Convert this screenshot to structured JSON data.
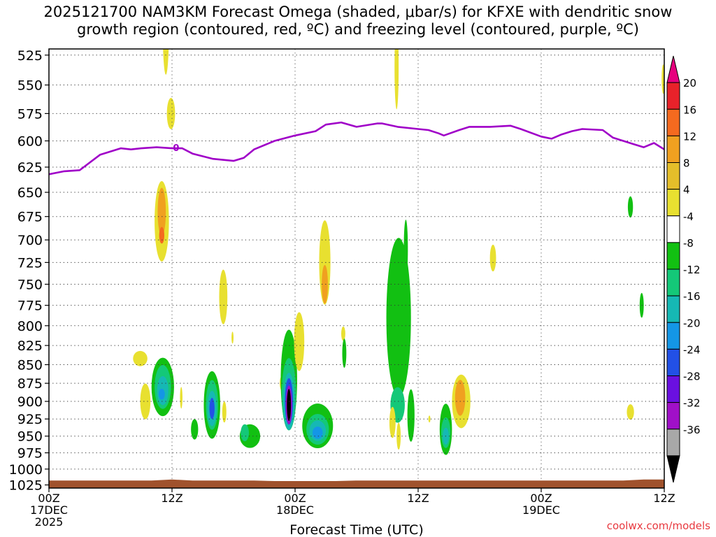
{
  "title": {
    "line1": "2025121700 NAM3KM Forecast Omega (shaded, μbar/s) for KFXE with dendritic snow",
    "line2": "growth region (contoured, red, ºC) and freezing level (contoured, purple, ºC)"
  },
  "credit": "coolwx.com/models",
  "chart_data": {
    "type": "heatmap",
    "xlabel": "Forecast Time (UTC)",
    "ylabel": "",
    "x_ticks": [
      {
        "hour": 0,
        "line1": "00Z",
        "line2": "17DEC",
        "line3": "2025"
      },
      {
        "hour": 12,
        "line1": "12Z",
        "line2": "",
        "line3": ""
      },
      {
        "hour": 24,
        "line1": "00Z",
        "line2": "18DEC",
        "line3": ""
      },
      {
        "hour": 36,
        "line1": "12Z",
        "line2": "",
        "line3": ""
      },
      {
        "hour": 48,
        "line1": "00Z",
        "line2": "19DEC",
        "line3": ""
      },
      {
        "hour": 60,
        "line1": "12Z",
        "line2": "",
        "line3": ""
      }
    ],
    "xlim": [
      0,
      60
    ],
    "ylim_hpa": [
      1030,
      520
    ],
    "y_ticks": [
      525,
      550,
      575,
      600,
      625,
      650,
      675,
      700,
      725,
      750,
      775,
      800,
      825,
      850,
      875,
      900,
      925,
      950,
      975,
      1000,
      1025
    ],
    "colorbar": {
      "labels": [
        "20",
        "16",
        "12",
        "8",
        "4",
        "-4",
        "-8",
        "-12",
        "-16",
        "-20",
        "-24",
        "-28",
        "-32",
        "-36"
      ],
      "colors": [
        "#e6007e",
        "#e8222a",
        "#f46a1f",
        "#f0a020",
        "#e4be2a",
        "#e8e030",
        "#ffffff",
        "#12c012",
        "#14c878",
        "#16b8b4",
        "#1496e6",
        "#2250e6",
        "#6a10e0",
        "#a010c8",
        "#a8a8a8",
        "#000000"
      ]
    },
    "freezing_level": {
      "name": "freezing level",
      "color": "#a000c8",
      "points": [
        [
          0,
          632
        ],
        [
          1.5,
          629
        ],
        [
          3,
          628
        ],
        [
          5,
          613
        ],
        [
          7,
          607
        ],
        [
          8,
          608
        ],
        [
          9,
          607
        ],
        [
          10.5,
          606
        ],
        [
          12,
          607
        ],
        [
          13,
          607
        ],
        [
          14,
          612
        ],
        [
          16,
          617
        ],
        [
          18,
          619
        ],
        [
          19,
          616
        ],
        [
          20,
          608
        ],
        [
          22,
          600
        ],
        [
          24,
          595
        ],
        [
          26,
          591
        ],
        [
          27,
          585
        ],
        [
          28.5,
          583
        ],
        [
          30,
          587
        ],
        [
          32,
          584
        ],
        [
          32.5,
          584
        ],
        [
          34,
          587
        ],
        [
          36,
          589
        ],
        [
          37,
          590
        ],
        [
          38,
          593
        ],
        [
          38.5,
          595
        ],
        [
          40,
          590
        ],
        [
          41,
          587
        ],
        [
          43,
          587
        ],
        [
          45,
          586
        ],
        [
          46,
          589
        ],
        [
          48,
          596
        ],
        [
          49,
          598
        ],
        [
          50,
          594
        ],
        [
          51,
          591
        ],
        [
          52,
          589
        ],
        [
          54,
          590
        ],
        [
          55,
          597
        ],
        [
          57,
          603
        ],
        [
          58,
          606
        ],
        [
          59,
          602
        ],
        [
          60,
          608
        ]
      ]
    },
    "omega_regions": [
      {
        "value": 6,
        "x": 11.4,
        "p": 505,
        "w": 0.3,
        "h": 70
      },
      {
        "value": 6,
        "x": 11.9,
        "p": 575,
        "w": 0.4,
        "h": 28
      },
      {
        "value": 6,
        "x": 11.0,
        "p": 680,
        "w": 0.7,
        "h": 85
      },
      {
        "value": 10,
        "x": 11.0,
        "p": 670,
        "w": 0.4,
        "h": 50
      },
      {
        "value": 12,
        "x": 11.0,
        "p": 695,
        "w": 0.25,
        "h": 18
      },
      {
        "value": 6,
        "x": 8.9,
        "p": 842,
        "w": 0.7,
        "h": 20
      },
      {
        "value": 6,
        "x": 9.4,
        "p": 900,
        "w": 0.5,
        "h": 50
      },
      {
        "value": -6,
        "x": 11.1,
        "p": 880,
        "w": 1.1,
        "h": 80
      },
      {
        "value": -10,
        "x": 11.1,
        "p": 880,
        "w": 0.8,
        "h": 60
      },
      {
        "value": -14,
        "x": 11.1,
        "p": 885,
        "w": 0.55,
        "h": 40
      },
      {
        "value": -18,
        "x": 11.0,
        "p": 890,
        "w": 0.3,
        "h": 15
      },
      {
        "value": 6,
        "x": 12.9,
        "p": 895,
        "w": 0.12,
        "h": 30
      },
      {
        "value": 6,
        "x": 17.0,
        "p": 765,
        "w": 0.4,
        "h": 65
      },
      {
        "value": 6,
        "x": 17.9,
        "p": 815,
        "w": 0.1,
        "h": 15
      },
      {
        "value": -6,
        "x": 15.9,
        "p": 905,
        "w": 0.8,
        "h": 95
      },
      {
        "value": -10,
        "x": 15.9,
        "p": 905,
        "w": 0.6,
        "h": 70
      },
      {
        "value": -14,
        "x": 15.9,
        "p": 910,
        "w": 0.45,
        "h": 50
      },
      {
        "value": -20,
        "x": 15.9,
        "p": 910,
        "w": 0.25,
        "h": 30
      },
      {
        "value": -6,
        "x": 14.2,
        "p": 940,
        "w": 0.35,
        "h": 30
      },
      {
        "value": -6,
        "x": 19.6,
        "p": 950,
        "w": 1.0,
        "h": 35
      },
      {
        "value": -10,
        "x": 19.1,
        "p": 945,
        "w": 0.4,
        "h": 25
      },
      {
        "value": 6,
        "x": 17.1,
        "p": 915,
        "w": 0.2,
        "h": 30
      },
      {
        "value": 6,
        "x": 22.9,
        "p": 875,
        "w": 0.4,
        "h": 25
      },
      {
        "value": -6,
        "x": 23.4,
        "p": 870,
        "w": 0.8,
        "h": 135
      },
      {
        "value": -10,
        "x": 23.4,
        "p": 890,
        "w": 0.7,
        "h": 100
      },
      {
        "value": -14,
        "x": 23.4,
        "p": 900,
        "w": 0.55,
        "h": 80
      },
      {
        "value": -20,
        "x": 23.4,
        "p": 900,
        "w": 0.4,
        "h": 65
      },
      {
        "value": -28,
        "x": 23.4,
        "p": 905,
        "w": 0.3,
        "h": 55
      },
      {
        "value": -36,
        "x": 23.4,
        "p": 905,
        "w": 0.2,
        "h": 45
      },
      {
        "value": 6,
        "x": 24.4,
        "p": 820,
        "w": 0.5,
        "h": 75
      },
      {
        "value": -6,
        "x": 26.2,
        "p": 935,
        "w": 1.5,
        "h": 65
      },
      {
        "value": -10,
        "x": 26.2,
        "p": 940,
        "w": 1.1,
        "h": 45
      },
      {
        "value": -14,
        "x": 26.2,
        "p": 942,
        "w": 0.8,
        "h": 30
      },
      {
        "value": -18,
        "x": 26.2,
        "p": 945,
        "w": 0.5,
        "h": 18
      },
      {
        "value": 6,
        "x": 26.9,
        "p": 725,
        "w": 0.55,
        "h": 95
      },
      {
        "value": 10,
        "x": 26.9,
        "p": 750,
        "w": 0.3,
        "h": 45
      },
      {
        "value": 6,
        "x": 28.7,
        "p": 810,
        "w": 0.2,
        "h": 18
      },
      {
        "value": -6,
        "x": 28.8,
        "p": 835,
        "w": 0.2,
        "h": 38
      },
      {
        "value": -6,
        "x": 34.1,
        "p": 790,
        "w": 1.2,
        "h": 195
      },
      {
        "value": -6,
        "x": 34.8,
        "p": 710,
        "w": 0.2,
        "h": 65
      },
      {
        "value": -10,
        "x": 34.0,
        "p": 905,
        "w": 0.7,
        "h": 50
      },
      {
        "value": 6,
        "x": 33.5,
        "p": 930,
        "w": 0.3,
        "h": 45
      },
      {
        "value": 6,
        "x": 33.9,
        "p": 535,
        "w": 0.2,
        "h": 70
      },
      {
        "value": 6,
        "x": 34.1,
        "p": 950,
        "w": 0.2,
        "h": 40
      },
      {
        "value": -6,
        "x": 35.3,
        "p": 920,
        "w": 0.35,
        "h": 75
      },
      {
        "value": 6,
        "x": 37.1,
        "p": 925,
        "w": 0.1,
        "h": 10
      },
      {
        "value": -6,
        "x": 38.7,
        "p": 940,
        "w": 0.6,
        "h": 75
      },
      {
        "value": -10,
        "x": 38.7,
        "p": 945,
        "w": 0.45,
        "h": 45
      },
      {
        "value": -14,
        "x": 38.7,
        "p": 950,
        "w": 0.3,
        "h": 25
      },
      {
        "value": 6,
        "x": 40.2,
        "p": 900,
        "w": 0.9,
        "h": 75
      },
      {
        "value": 10,
        "x": 40.1,
        "p": 895,
        "w": 0.5,
        "h": 50
      },
      {
        "value": 6,
        "x": 43.3,
        "p": 720,
        "w": 0.3,
        "h": 30
      },
      {
        "value": 6,
        "x": 56.7,
        "p": 915,
        "w": 0.35,
        "h": 22
      },
      {
        "value": -6,
        "x": 56.7,
        "p": 665,
        "w": 0.25,
        "h": 22
      },
      {
        "value": -6,
        "x": 57.8,
        "p": 775,
        "w": 0.2,
        "h": 30
      },
      {
        "value": 6,
        "x": 59.9,
        "p": 545,
        "w": 0.15,
        "h": 25
      }
    ],
    "surface": {
      "color": "#a0522d",
      "p_top": 1018
    }
  }
}
